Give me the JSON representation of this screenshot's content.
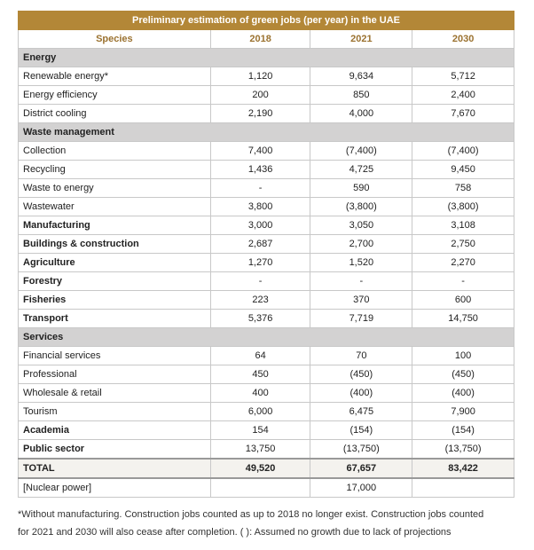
{
  "table": {
    "title": "Preliminary estimation of green jobs (per year) in the UAE",
    "columns": [
      "Species",
      "2018",
      "2021",
      "2030"
    ],
    "rows": [
      {
        "label": "Energy",
        "style": "section"
      },
      {
        "label": "Renewable energy*",
        "values": [
          "1,120",
          "9,634",
          "5,712"
        ]
      },
      {
        "label": "Energy efficiency",
        "values": [
          "200",
          "850",
          "2,400"
        ]
      },
      {
        "label": "District cooling",
        "values": [
          "2,190",
          "4,000",
          "7,670"
        ]
      },
      {
        "label": "Waste management",
        "style": "section"
      },
      {
        "label": "Collection",
        "values": [
          "7,400",
          "(7,400)",
          "(7,400)"
        ]
      },
      {
        "label": "Recycling",
        "values": [
          "1,436",
          "4,725",
          "9,450"
        ]
      },
      {
        "label": "Waste to energy",
        "values": [
          "-",
          "590",
          "758"
        ]
      },
      {
        "label": "Wastewater",
        "values": [
          "3,800",
          "(3,800)",
          "(3,800)"
        ]
      },
      {
        "label": "Manufacturing",
        "style": "bold",
        "values": [
          "3,000",
          "3,050",
          "3,108"
        ]
      },
      {
        "label": "Buildings & construction",
        "style": "bold",
        "values": [
          "2,687",
          "2,700",
          "2,750"
        ]
      },
      {
        "label": "Agriculture",
        "style": "bold",
        "values": [
          "1,270",
          "1,520",
          "2,270"
        ]
      },
      {
        "label": "Forestry",
        "style": "bold",
        "values": [
          "-",
          "-",
          "-"
        ]
      },
      {
        "label": "Fisheries",
        "style": "bold",
        "values": [
          "223",
          "370",
          "600"
        ]
      },
      {
        "label": "Transport",
        "style": "bold",
        "values": [
          "5,376",
          "7,719",
          "14,750"
        ]
      },
      {
        "label": "Services",
        "style": "section"
      },
      {
        "label": "Financial services",
        "values": [
          "64",
          "70",
          "100"
        ]
      },
      {
        "label": "Professional",
        "values": [
          "450",
          "(450)",
          "(450)"
        ]
      },
      {
        "label": "Wholesale & retail",
        "values": [
          "400",
          "(400)",
          "(400)"
        ]
      },
      {
        "label": "Tourism",
        "values": [
          "6,000",
          "6,475",
          "7,900"
        ]
      },
      {
        "label": "Academia",
        "style": "bold",
        "values": [
          "154",
          "(154)",
          "(154)"
        ]
      },
      {
        "label": "Public sector",
        "style": "bold",
        "values": [
          "13,750",
          "(13,750)",
          "(13,750)"
        ]
      },
      {
        "label": "TOTAL",
        "style": "total",
        "values": [
          "49,520",
          "67,657",
          "83,422"
        ]
      },
      {
        "label": "[Nuclear power]",
        "values": [
          null,
          "17,000",
          null
        ]
      }
    ]
  },
  "footnote": [
    "*Without manufacturing. Construction jobs counted as up to 2018 no longer exist. Construction jobs counted",
    "for 2021 and 2030 will also cease after completion. ( ): Assumed no growth due to lack of projections"
  ]
}
